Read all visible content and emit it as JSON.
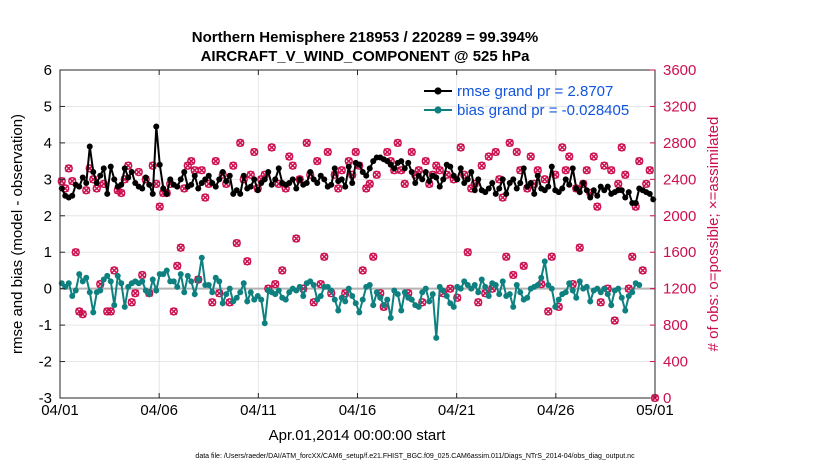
{
  "chart_data": {
    "type": "line",
    "title_line1": "Northern Hemisphere 218953 / 220289 = 99.394%",
    "title_line2": "AIRCRAFT_V_WIND_COMPONENT @ 525 hPa",
    "xlabel": "Apr.01,2014 00:00:00 start",
    "ylabel_left": "rmse and bias (model - observation)",
    "ylabel_right": "# of obs: o=possible; ×=assimilated",
    "x_ticks": [
      "04/01",
      "04/06",
      "04/11",
      "04/16",
      "04/21",
      "04/26",
      "05/01"
    ],
    "x_tick_days": [
      0,
      5,
      10,
      15,
      20,
      25,
      30
    ],
    "xlim_days": [
      0,
      30
    ],
    "ylim_left": [
      -3,
      6
    ],
    "yticks_left": [
      "-3",
      "-2",
      "-1",
      "0",
      "1",
      "2",
      "3",
      "4",
      "5",
      "6"
    ],
    "ylim_right": [
      0,
      3600
    ],
    "yticks_right": [
      "0",
      "400",
      "800",
      "1200",
      "1600",
      "2000",
      "2400",
      "2800",
      "3200",
      "3600"
    ],
    "grid": true,
    "legend_position": "top-right",
    "colors": {
      "rmse": "#000000",
      "bias": "#0f8080",
      "obs": "#cc0f4f",
      "zero_line": "#b3b3b3",
      "legend_text": "#1155dd",
      "grid": "#e6e6e6"
    },
    "series": [
      {
        "name": "rmse grand pr = 2.8707",
        "values": [
          2.75,
          2.55,
          2.5,
          2.55,
          2.85,
          2.8,
          3.05,
          2.9,
          3.9,
          3.2,
          2.9,
          3.1,
          3.3,
          2.6,
          3.35,
          3.0,
          2.8,
          2.85,
          3.3,
          3.05,
          3.2,
          2.9,
          2.8,
          2.75,
          3.05,
          2.85,
          2.6,
          4.45,
          3.4,
          2.75,
          2.6,
          3.0,
          2.85,
          2.8,
          3.0,
          3.2,
          2.8,
          2.85,
          3.1,
          2.75,
          2.9,
          3.0,
          3.1,
          2.9,
          2.8,
          3.0,
          3.2,
          2.95,
          3.1,
          2.6,
          2.7,
          2.6,
          3.1,
          2.75,
          2.8,
          3.0,
          2.7,
          2.9,
          3.0,
          3.2,
          2.85,
          3.0,
          3.3,
          2.9,
          2.85,
          2.9,
          3.0,
          2.75,
          3.0,
          2.85,
          2.9,
          3.2,
          3.0,
          2.9,
          3.1,
          3.0,
          2.8,
          2.85,
          3.3,
          2.95,
          3.0,
          2.8,
          3.35,
          2.9,
          3.45,
          3.4,
          3.2,
          3.1,
          3.3,
          3.5,
          3.6,
          3.6,
          3.55,
          3.5,
          3.4,
          3.3,
          3.45,
          3.5,
          3.3,
          3.45,
          3.2,
          2.9,
          3.1,
          3.0,
          3.2,
          2.95,
          3.1,
          3.05,
          2.8,
          3.0,
          3.4,
          3.35,
          3.1,
          3.0,
          3.3,
          2.9,
          3.0,
          3.2,
          2.7,
          3.0,
          2.7,
          2.65,
          2.75,
          2.9,
          2.6,
          2.75,
          3.0,
          2.6,
          2.9,
          3.0,
          2.75,
          2.9,
          3.3,
          2.8,
          2.9,
          2.6,
          3.1,
          2.75,
          2.7,
          2.8,
          3.35,
          2.7,
          2.65,
          2.75,
          3.0,
          2.85,
          3.3,
          2.75,
          2.65,
          2.9,
          2.7,
          2.5,
          2.7,
          2.55,
          2.8,
          2.7,
          2.8,
          2.6,
          2.65,
          2.7,
          2.7,
          2.5,
          2.65,
          2.35,
          2.35,
          2.75,
          2.7,
          2.65,
          2.6,
          2.45
        ]
      },
      {
        "name": "bias grand pr = -0.028405",
        "values": [
          0.15,
          0.05,
          0.15,
          -0.2,
          -0.05,
          0.4,
          0.2,
          0.3,
          -0.1,
          -0.65,
          -0.1,
          -0.05,
          0.25,
          0.35,
          0.2,
          -0.45,
          0.35,
          0.15,
          -0.5,
          0.05,
          0.15,
          0.2,
          0.15,
          0.2,
          -0.05,
          -0.15,
          0.25,
          -0.05,
          0.4,
          0.4,
          0.5,
          0.2,
          0.2,
          0.05,
          0.4,
          -0.1,
          0.35,
          0.2,
          -0.15,
          0.25,
          0.85,
          0.1,
          0.1,
          -0.1,
          0.3,
          0.2,
          -0.4,
          -0.15,
          0.0,
          -0.35,
          -0.25,
          -0.1,
          0.15,
          -0.35,
          -0.1,
          -0.3,
          -0.2,
          -0.3,
          -0.95,
          -0.05,
          -0.1,
          -0.15,
          -0.05,
          -0.25,
          -0.3,
          -0.1,
          0.0,
          -0.05,
          0.05,
          -0.2,
          0.15,
          0.2,
          0.1,
          -0.3,
          -0.2,
          0.05,
          0.05,
          -0.05,
          -0.3,
          -0.6,
          -0.25,
          -0.35,
          0.0,
          -0.2,
          -0.4,
          -0.65,
          -0.3,
          0.05,
          0.1,
          -0.45,
          -0.1,
          -0.25,
          -0.45,
          -0.3,
          -0.8,
          -0.05,
          -0.15,
          -0.6,
          -0.1,
          -0.25,
          -0.3,
          -0.45,
          -0.5,
          -0.1,
          0.0,
          -0.35,
          -0.15,
          -1.35,
          0.05,
          -0.05,
          -0.2,
          -0.4,
          -0.5,
          0.05,
          0.0,
          0.2,
          0.1,
          0.0,
          0.1,
          -0.1,
          0.25,
          0.05,
          -0.2,
          0.15,
          0.1,
          -0.15,
          0.2,
          -0.2,
          -0.15,
          -0.5,
          0.1,
          -0.1,
          -0.3,
          -0.25,
          0.0,
          0.05,
          0.1,
          0.3,
          0.75,
          0.1,
          0.0,
          -0.5,
          -0.3,
          -0.15,
          -0.1,
          0.15,
          -0.05,
          -0.25,
          0.2,
          0.0,
          0.05,
          -0.35,
          -0.05,
          0.0,
          -0.1,
          0.0,
          -0.15,
          -0.45,
          -0.05,
          0.0,
          -0.25,
          -0.6,
          -0.2,
          -0.1,
          0.15,
          0.1
        ]
      },
      {
        "name": "possible",
        "values": [
          2380,
          2300,
          2520,
          2380,
          1600,
          950,
          920,
          2280,
          2520,
          2400,
          2300,
          1250,
          2350,
          950,
          950,
          1400,
          2280,
          2250,
          2400,
          2550,
          1050,
          1150,
          2480,
          1350,
          2400,
          1150,
          2550,
          2350,
          2100,
          2250,
          2250,
          2350,
          950,
          1450,
          1650,
          2300,
          2550,
          2600,
          2500,
          1300,
          2500,
          2200,
          2350,
          1050,
          2600,
          1150,
          2450,
          2350,
          1050,
          2550,
          1700,
          2800,
          2400,
          1500,
          2450,
          2700,
          2300,
          2400,
          2450,
          1200,
          2750,
          1250,
          2350,
          1400,
          2300,
          2650,
          2550,
          1750,
          2400,
          1200,
          2800,
          2450,
          1050,
          2600,
          1250,
          1550,
          2700,
          1150,
          2450,
          2300,
          2500,
          1150,
          2600,
          2450,
          2700,
          2550,
          1400,
          2300,
          2350,
          1550,
          2450,
          1150,
          1000,
          2700,
          2600,
          2500,
          2800,
          2500,
          2350,
          1150,
          2700,
          2450,
          2500,
          1050,
          2600,
          2350,
          2450,
          2550,
          2500,
          1150,
          2450,
          1200,
          2400,
          1100,
          2750,
          2450,
          1600,
          2300,
          2350,
          1050,
          2550,
          1150,
          2650,
          1200,
          2700,
          2400,
          2200,
          1550,
          2800,
          1350,
          2700,
          2500,
          1450,
          2300,
          2650,
          2350,
          2500,
          1250,
          2400,
          950,
          1550,
          2450,
          1000,
          2750,
          2500,
          2650,
          1250,
          2300,
          1650,
          2350,
          2500,
          2250,
          2650,
          2100,
          1050,
          2550,
          1200,
          2500,
          850,
          2350,
          2750,
          2450,
          1200,
          1550,
          2100,
          2600,
          1400,
          2350,
          2500,
          0
        ]
      }
    ]
  },
  "footer_note": "data file: /Users/raeder/DAI/ATM_forcXX/CAM6_setup/f.e21.FHIST_BGC.f09_025.CAM6assim.011/Diags_NTrS_2014-04/obs_diag_output.nc"
}
